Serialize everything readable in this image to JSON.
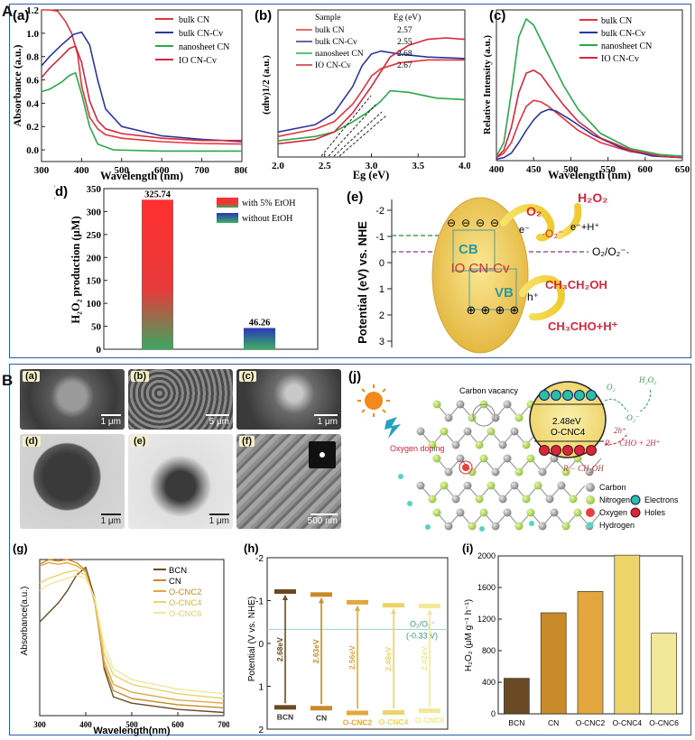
{
  "sections": {
    "A": "A",
    "B": "B"
  },
  "panel_labels": {
    "a": "(a)",
    "b": "(b)",
    "c": "(c)",
    "d": "(d)",
    "e": "(e)",
    "Ba": "(a)",
    "Bb": "(b)",
    "Bc": "(c)",
    "Bd": "(d)",
    "Be": "(e)",
    "Bf": "(f)",
    "g": "(g)",
    "h": "(h)",
    "i": "(i)",
    "j": "(j)"
  },
  "colors": {
    "red": "#e8323b",
    "blue": "#2c36a0",
    "green": "#2aa84a",
    "crimson": "#d8273c"
  },
  "chart_data": [
    {
      "id": "A-a",
      "type": "line",
      "xlabel": "Wavelength (nm)",
      "ylabel": "Absorbance (a.u.)",
      "xlim": [
        300,
        800
      ],
      "ylim": [
        -0.1,
        1.2
      ],
      "xticks": [
        300,
        400,
        500,
        600,
        700,
        800
      ],
      "yticks": [
        "0.0",
        "0.2",
        "0.4",
        "0.6",
        "0.8",
        "1.0",
        "1.2"
      ],
      "legend": [
        "bulk CN",
        "bulk CN-Cv",
        "nanosheet CN",
        "IO CN-Cv"
      ],
      "series": [
        {
          "name": "bulk CN",
          "color": "#e8323b",
          "x": [
            300,
            320,
            340,
            360,
            375,
            390,
            400,
            420,
            440,
            460,
            500,
            600,
            700,
            800
          ],
          "y": [
            1.2,
            1.2,
            1.19,
            1.1,
            1.0,
            0.82,
            0.55,
            0.28,
            0.18,
            0.13,
            0.1,
            0.07,
            0.055,
            0.05
          ]
        },
        {
          "name": "bulk CN-Cv",
          "color": "#2c36a0",
          "x": [
            300,
            320,
            350,
            380,
            400,
            420,
            440,
            460,
            500,
            600,
            700,
            800
          ],
          "y": [
            0.72,
            0.8,
            0.9,
            0.99,
            1.01,
            0.9,
            0.6,
            0.35,
            0.2,
            0.12,
            0.09,
            0.07
          ]
        },
        {
          "name": "nanosheet CN",
          "color": "#2aa84a",
          "x": [
            300,
            320,
            350,
            370,
            385,
            400,
            420,
            440,
            480,
            600,
            700,
            800
          ],
          "y": [
            0.5,
            0.52,
            0.58,
            0.64,
            0.66,
            0.48,
            0.2,
            0.05,
            0.0,
            -0.01,
            -0.01,
            -0.01
          ]
        },
        {
          "name": "IO CN-Cv",
          "color": "#d8273c",
          "x": [
            300,
            320,
            350,
            370,
            385,
            400,
            420,
            440,
            460,
            500,
            600,
            700,
            800
          ],
          "y": [
            0.62,
            0.7,
            0.8,
            0.87,
            0.89,
            0.75,
            0.42,
            0.25,
            0.18,
            0.14,
            0.1,
            0.08,
            0.08
          ]
        }
      ]
    },
    {
      "id": "A-b",
      "type": "line",
      "xlabel": "Eg (eV)",
      "ylabel": "(αhν)1/2 (a.u.)",
      "xlim": [
        2.0,
        4.0
      ],
      "ylim": [
        0,
        1
      ],
      "xticks": [
        "2.0",
        "2.5",
        "3.0",
        "3.5",
        "4.0"
      ],
      "table_headers": [
        "Sample",
        "Eg (eV)"
      ],
      "table": [
        [
          "bulk CN",
          "2.57"
        ],
        [
          "bulk CN-Cv",
          "2.55"
        ],
        [
          "nanosheet CN",
          "2.68"
        ],
        [
          "IO CN-Cv",
          "2.67"
        ]
      ],
      "series": [
        {
          "name": "bulk CN",
          "color": "#e8323b",
          "x": [
            2.0,
            2.4,
            2.6,
            2.8,
            2.9,
            3.0,
            3.1,
            3.3,
            3.6,
            4.0
          ],
          "y": [
            0.14,
            0.19,
            0.24,
            0.36,
            0.45,
            0.55,
            0.6,
            0.64,
            0.66,
            0.66
          ]
        },
        {
          "name": "bulk CN-Cv",
          "color": "#2c36a0",
          "x": [
            2.0,
            2.4,
            2.6,
            2.8,
            2.9,
            3.0,
            3.1,
            3.3,
            3.6,
            4.0
          ],
          "y": [
            0.17,
            0.22,
            0.3,
            0.48,
            0.62,
            0.7,
            0.72,
            0.7,
            0.68,
            0.67
          ]
        },
        {
          "name": "nanosheet CN",
          "color": "#2aa84a",
          "x": [
            2.0,
            2.4,
            2.6,
            2.8,
            2.95,
            3.1,
            3.2,
            3.4,
            3.7,
            4.0
          ],
          "y": [
            0.11,
            0.14,
            0.17,
            0.24,
            0.3,
            0.38,
            0.45,
            0.44,
            0.4,
            0.39
          ]
        },
        {
          "name": "IO CN-Cv",
          "color": "#d8273c",
          "x": [
            2.0,
            2.4,
            2.6,
            2.8,
            3.0,
            3.2,
            3.4,
            3.6,
            3.8,
            4.0
          ],
          "y": [
            0.09,
            0.12,
            0.17,
            0.3,
            0.48,
            0.68,
            0.76,
            0.8,
            0.81,
            0.8
          ]
        }
      ]
    },
    {
      "id": "A-c",
      "type": "line",
      "xlabel": "Wavelength (nm)",
      "ylabel": "Relative Intensity (a.u.)",
      "xlim": [
        400,
        650
      ],
      "ylim": [
        0,
        1
      ],
      "xticks": [
        400,
        450,
        500,
        550,
        600,
        650
      ],
      "legend": [
        "bulk CN",
        "bulk CN-Cv",
        "nanosheet CN",
        "IO CN-Cv"
      ],
      "series": [
        {
          "name": "bulk CN",
          "color": "#e8323b",
          "x": [
            400,
            410,
            420,
            430,
            440,
            450,
            460,
            470,
            490,
            510,
            540,
            580,
            620,
            650
          ],
          "y": [
            0.02,
            0.05,
            0.12,
            0.25,
            0.36,
            0.4,
            0.39,
            0.36,
            0.28,
            0.2,
            0.12,
            0.06,
            0.03,
            0.02
          ]
        },
        {
          "name": "bulk CN-Cv",
          "color": "#2c36a0",
          "x": [
            400,
            410,
            420,
            430,
            440,
            450,
            460,
            470,
            480,
            500,
            530,
            570,
            610,
            650
          ],
          "y": [
            0.01,
            0.02,
            0.05,
            0.12,
            0.2,
            0.27,
            0.32,
            0.34,
            0.33,
            0.27,
            0.17,
            0.08,
            0.03,
            0.02
          ]
        },
        {
          "name": "nanosheet CN",
          "color": "#2aa84a",
          "x": [
            400,
            410,
            420,
            430,
            440,
            450,
            460,
            470,
            490,
            510,
            540,
            580,
            620,
            650
          ],
          "y": [
            0.03,
            0.12,
            0.45,
            0.82,
            0.94,
            0.9,
            0.8,
            0.7,
            0.5,
            0.34,
            0.18,
            0.08,
            0.04,
            0.03
          ]
        },
        {
          "name": "IO CN-Cv",
          "color": "#d8273c",
          "x": [
            400,
            410,
            420,
            430,
            440,
            450,
            460,
            470,
            490,
            510,
            540,
            580,
            620,
            650
          ],
          "y": [
            0.02,
            0.07,
            0.22,
            0.45,
            0.58,
            0.6,
            0.57,
            0.5,
            0.37,
            0.26,
            0.15,
            0.07,
            0.03,
            0.02
          ]
        }
      ]
    },
    {
      "id": "A-d",
      "type": "bar",
      "ylabel": "H₂O₂ production (μM)",
      "ylim": [
        0,
        350
      ],
      "yticks": [
        0,
        50,
        100,
        150,
        200,
        250,
        300,
        350
      ],
      "categories": [
        "with 5% EtOH",
        "without EtOH"
      ],
      "values": [
        325.74,
        46.26
      ],
      "labels": [
        "325.74",
        "46.26"
      ],
      "legend": [
        "with 5% EtOH",
        "without EtOH"
      ]
    },
    {
      "id": "B-i",
      "type": "bar",
      "ylabel": "H₂O₂ (μM g⁻¹ h⁻¹)",
      "ylim": [
        0,
        2000
      ],
      "yticks": [
        0,
        400,
        800,
        1200,
        1600,
        2000
      ],
      "categories": [
        "BCN",
        "CN",
        "O-CNC2",
        "O-CNC4",
        "O-CNC6"
      ],
      "values": [
        450,
        1280,
        1550,
        2010,
        1020
      ]
    },
    {
      "id": "B-g",
      "type": "line",
      "xlabel": "Wavelength(nm)",
      "ylabel": "Absorbance(a.u.)",
      "xlim": [
        300,
        700
      ],
      "ylim": [
        0,
        1
      ],
      "xticks": [
        300,
        400,
        500,
        600,
        700
      ],
      "legend": [
        "BCN",
        "CN",
        "O-CNC2",
        "O-CNC4",
        "O-CNC6"
      ],
      "series": [
        {
          "name": "BCN",
          "color": "#6b4a23",
          "x": [
            300,
            320,
            340,
            360,
            380,
            400,
            420,
            440,
            460,
            500,
            600,
            700
          ],
          "y": [
            0.6,
            0.66,
            0.72,
            0.8,
            0.9,
            0.95,
            0.75,
            0.3,
            0.12,
            0.08,
            0.04,
            0.02
          ]
        },
        {
          "name": "CN",
          "color": "#c98a2a",
          "x": [
            300,
            320,
            340,
            360,
            380,
            400,
            420,
            440,
            460,
            500,
            600,
            700
          ],
          "y": [
            0.97,
            1.0,
            0.99,
            1.0,
            0.98,
            0.93,
            0.72,
            0.32,
            0.16,
            0.11,
            0.07,
            0.05
          ]
        },
        {
          "name": "O-CNC2",
          "color": "#e3a740",
          "x": [
            300,
            320,
            340,
            360,
            380,
            400,
            420,
            440,
            460,
            500,
            600,
            700
          ],
          "y": [
            0.96,
            0.98,
            0.97,
            0.98,
            0.96,
            0.92,
            0.72,
            0.35,
            0.2,
            0.15,
            0.1,
            0.08
          ]
        },
        {
          "name": "O-CNC4",
          "color": "#ecd36a",
          "x": [
            300,
            320,
            340,
            360,
            380,
            400,
            420,
            440,
            460,
            500,
            600,
            700
          ],
          "y": [
            0.85,
            0.88,
            0.9,
            0.92,
            0.93,
            0.9,
            0.74,
            0.4,
            0.26,
            0.2,
            0.14,
            0.11
          ]
        },
        {
          "name": "O-CNC6",
          "color": "#f3e79a",
          "x": [
            300,
            320,
            340,
            360,
            380,
            400,
            420,
            440,
            460,
            500,
            600,
            700
          ],
          "y": [
            0.8,
            0.84,
            0.86,
            0.88,
            0.9,
            0.88,
            0.75,
            0.45,
            0.3,
            0.23,
            0.17,
            0.14
          ]
        }
      ]
    },
    {
      "id": "B-h",
      "type": "band-diagram",
      "ylabel": "Potential (V vs. NHE)",
      "ylim": [
        -2,
        2
      ],
      "yticks": [
        "-2",
        "-1",
        "0",
        "1",
        "2"
      ],
      "ref_label": "O₂/O₂⁻",
      "ref_value_label": "(-0.33 V)",
      "ref_potential": -0.33,
      "categories": [
        "BCN",
        "CN",
        "O-CNC2",
        "O-CNC4",
        "O-CNC6"
      ],
      "colors": [
        "#6b4a23",
        "#c98a2a",
        "#e3a740",
        "#ecd36a",
        "#f3e79a"
      ],
      "cb": [
        -1.2,
        -1.13,
        -0.95,
        -0.88,
        -0.86
      ],
      "vb": [
        1.48,
        1.5,
        1.61,
        1.6,
        1.56
      ],
      "gaps": [
        "2.68eV",
        "2.63eV",
        "2.56eV",
        "2.48eV",
        "2.42eV"
      ]
    }
  ],
  "panel_e": {
    "ylabel": "Potential (eV) vs. NHE",
    "yticks": [
      "-2",
      "-1",
      "0",
      "1",
      "2",
      "3"
    ],
    "o2": "O₂",
    "h2o2": "H₂O₂",
    "e_minus": "e⁻",
    "e_plus_h": "e⁻+H⁺",
    "o2_radical": "·O₂⁻",
    "couple": "O₂/O₂⁻·",
    "cb": "CB",
    "vb": "VB",
    "material": "IO CN-Cv",
    "h_plus": "h⁺",
    "ethanol": "CH₃CH₂OH",
    "product": "CH₃CHO+H⁺"
  },
  "sem": {
    "a_scale": "1 μm",
    "b_scale": "5 μm",
    "c_scale": "1 μm",
    "d_scale": "1 μm",
    "e_scale": "1 μm",
    "f_scale": "500 nm"
  },
  "panel_j": {
    "carbon_vacancy": "Carbon vacancy",
    "oxygen_doping": "Oxygen doping",
    "gap": "2.48eV",
    "material": "O-CNC4",
    "o2": "O₂",
    "o2_rad": "·O₂⁻",
    "h2o2": "H₂O₂",
    "h_plus": "2h⁺",
    "reaction": "R − CHO + 2H⁺",
    "reactant": "R − CH₂OH",
    "legend": [
      "Carbon",
      "Nitrogen",
      "Oxygen",
      "Hydrogen",
      "Electrons",
      "Holes"
    ]
  }
}
